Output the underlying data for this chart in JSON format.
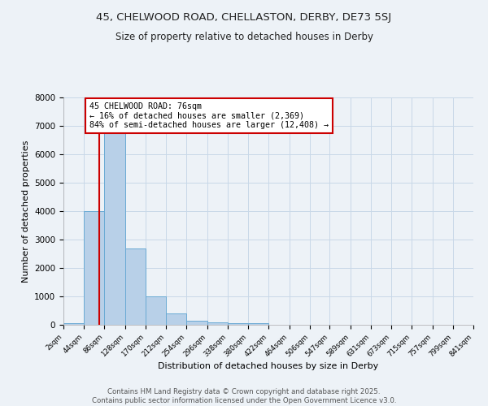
{
  "title_line1": "45, CHELWOOD ROAD, CHELLASTON, DERBY, DE73 5SJ",
  "title_line2": "Size of property relative to detached houses in Derby",
  "xlabel": "Distribution of detached houses by size in Derby",
  "ylabel": "Number of detached properties",
  "bar_edges": [
    2,
    44,
    86,
    128,
    170,
    212,
    254,
    296,
    338,
    380,
    422,
    464,
    506,
    547,
    589,
    631,
    673,
    715,
    757,
    799,
    841
  ],
  "bar_heights": [
    50,
    4000,
    6800,
    2700,
    1000,
    400,
    150,
    80,
    50,
    50,
    0,
    0,
    0,
    0,
    0,
    0,
    0,
    0,
    0,
    0
  ],
  "bar_color": "#b8d0e8",
  "bar_edgecolor": "#6aaad4",
  "vline_x": 76,
  "vline_color": "#cc0000",
  "annotation_text": "45 CHELWOOD ROAD: 76sqm\n← 16% of detached houses are smaller (2,369)\n84% of semi-detached houses are larger (12,408) →",
  "annotation_box_color": "#cc0000",
  "annotation_bg": "white",
  "ylim": [
    0,
    8000
  ],
  "yticks": [
    0,
    1000,
    2000,
    3000,
    4000,
    5000,
    6000,
    7000,
    8000
  ],
  "tick_labels": [
    "2sqm",
    "44sqm",
    "86sqm",
    "128sqm",
    "170sqm",
    "212sqm",
    "254sqm",
    "296sqm",
    "338sqm",
    "380sqm",
    "422sqm",
    "464sqm",
    "506sqm",
    "547sqm",
    "589sqm",
    "631sqm",
    "673sqm",
    "715sqm",
    "757sqm",
    "799sqm",
    "841sqm"
  ],
  "footer_line1": "Contains HM Land Registry data © Crown copyright and database right 2025.",
  "footer_line2": "Contains public sector information licensed under the Open Government Licence v3.0.",
  "grid_color": "#c8d8e8",
  "background_color": "#edf2f7"
}
